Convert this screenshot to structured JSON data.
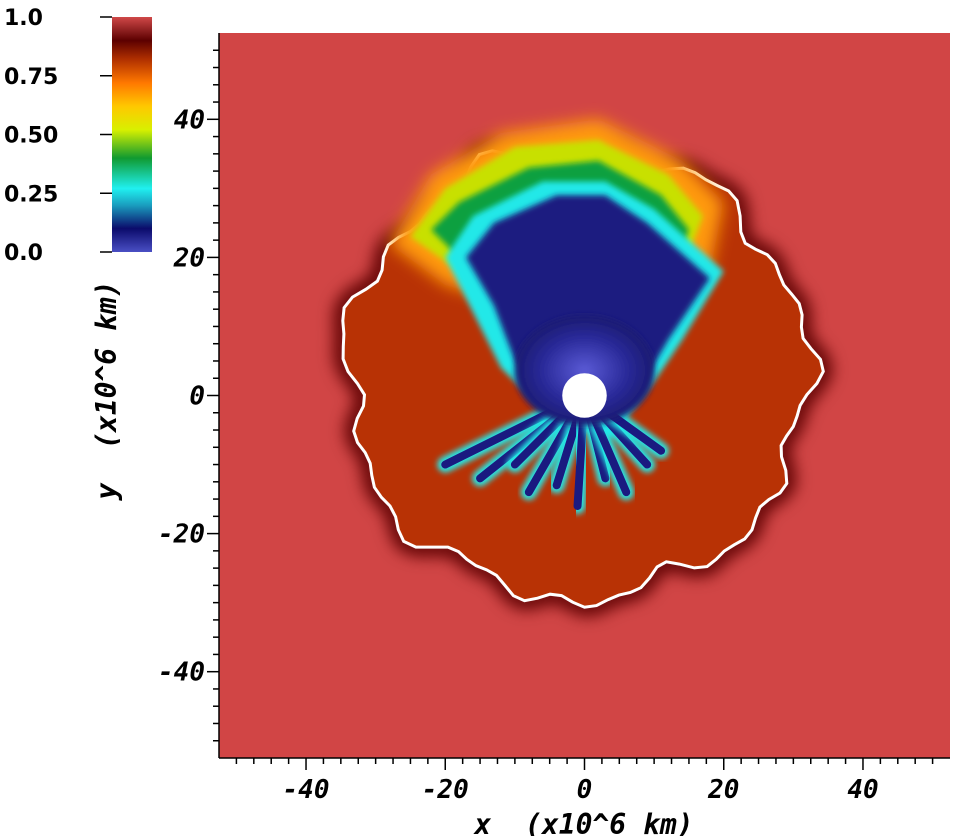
{
  "chart_data": {
    "type": "heatmap",
    "xlabel": "x  (x10^6 km)",
    "ylabel": "y  (x10^6 km)",
    "xlim": [
      -52.5,
      52.5
    ],
    "ylim": [
      -52.5,
      52.5
    ],
    "xticks": [
      -40,
      -20,
      0,
      20,
      40
    ],
    "yticks": [
      40,
      20,
      0,
      -20,
      -40
    ],
    "xtick_labels": [
      "-40",
      "-20",
      "0",
      "20",
      "40"
    ],
    "ytick_labels": [
      "40",
      "20",
      "0",
      "-20",
      "-40"
    ],
    "minor_tick_step": 2.5,
    "colorbar": {
      "range": [
        0.0,
        1.0
      ],
      "ticks": [
        1.0,
        0.75,
        0.5,
        0.25,
        0.0
      ],
      "tick_labels": [
        "1.0",
        "0.75",
        "0.50",
        "0.25",
        "0.0"
      ],
      "stops": [
        {
          "value": 0.0,
          "color": "#4a4fc4"
        },
        {
          "value": 0.1,
          "color": "#0b0b6b"
        },
        {
          "value": 0.2,
          "color": "#1a9fbf"
        },
        {
          "value": 0.27,
          "color": "#20f0f0"
        },
        {
          "value": 0.4,
          "color": "#109a30"
        },
        {
          "value": 0.52,
          "color": "#d8f000"
        },
        {
          "value": 0.62,
          "color": "#ffc800"
        },
        {
          "value": 0.72,
          "color": "#ff7800"
        },
        {
          "value": 0.82,
          "color": "#b03000"
        },
        {
          "value": 0.9,
          "color": "#5c0000"
        },
        {
          "value": 1.0,
          "color": "#d04848"
        }
      ]
    },
    "field": {
      "ambient_value": 1.0,
      "ambient_color": "#d14545",
      "shell_color": "#b83205",
      "shell_edge_color": "#ffffff",
      "shell_mean_radius": 33,
      "core_color": "#3b3ab0",
      "central_hole_radius": 3.2,
      "central_hole_color": "#ffffff"
    }
  }
}
